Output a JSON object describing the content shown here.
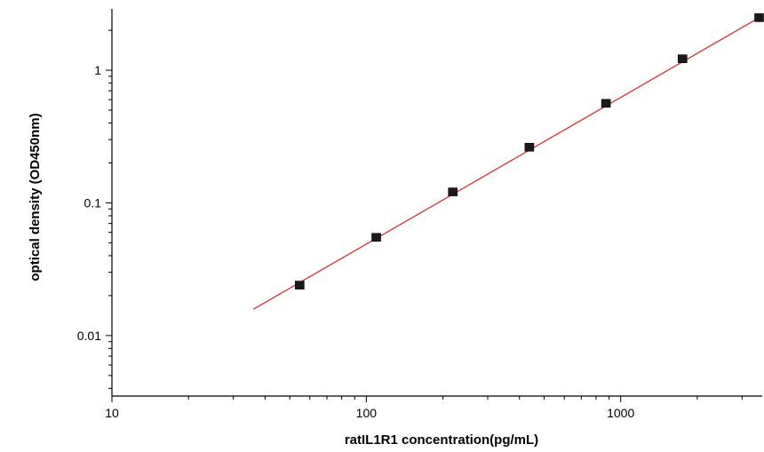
{
  "chart_data": {
    "type": "scatter",
    "title": "",
    "xlabel": "ratIL1R1  concentration(pg/mL)",
    "ylabel": "optical density (OD450nm)",
    "x_scale": "log",
    "y_scale": "log",
    "xlim": [
      10,
      3600
    ],
    "ylim": [
      0.0035,
      2.9
    ],
    "x_ticks": [
      {
        "value": 10,
        "label": "10"
      },
      {
        "value": 100,
        "label": "100"
      },
      {
        "value": 1000,
        "label": "1000"
      }
    ],
    "y_ticks": [
      {
        "value": 0.01,
        "label": "0.01"
      },
      {
        "value": 0.1,
        "label": "0.1"
      },
      {
        "value": 1,
        "label": "1"
      }
    ],
    "grid": false,
    "legend": "none",
    "series": [
      {
        "x": [
          54.7,
          109.4,
          218.8,
          437.5,
          875,
          1750,
          3500
        ],
        "y": [
          0.024,
          0.055,
          0.121,
          0.263,
          0.563,
          1.22,
          2.49
        ],
        "marker": "square",
        "marker_color": "#1a1a1a"
      }
    ],
    "fit_line": {
      "x": [
        36,
        3500
      ],
      "y": [
        0.0158,
        2.49
      ],
      "color": "#d9302c"
    }
  }
}
